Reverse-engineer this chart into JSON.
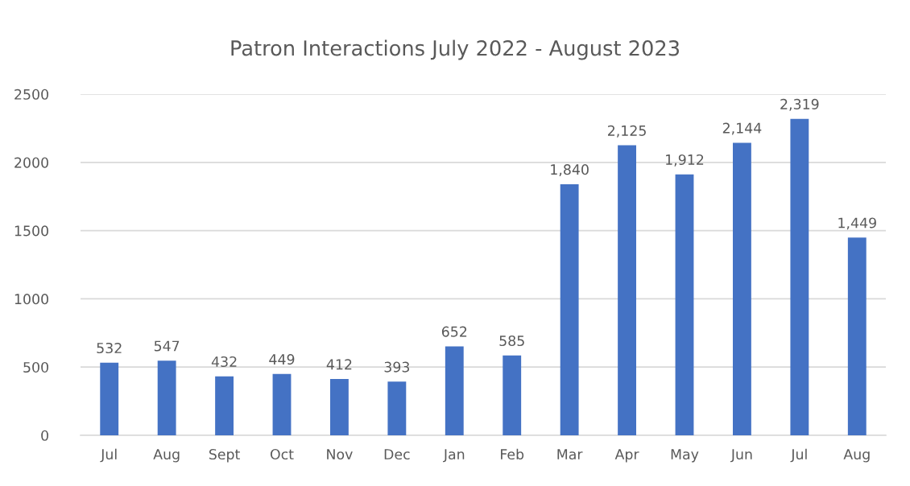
{
  "chart_data": {
    "type": "bar",
    "title": "Patron Interactions July 2022 - August 2023",
    "categories": [
      "Jul",
      "Aug",
      "Sept",
      "Oct",
      "Nov",
      "Dec",
      "Jan",
      "Feb",
      "Mar",
      "Apr",
      "May",
      "Jun",
      "Jul",
      "Aug"
    ],
    "values": [
      532,
      547,
      432,
      449,
      412,
      393,
      652,
      585,
      1840,
      2125,
      1912,
      2144,
      2319,
      1449
    ],
    "value_labels": [
      "532",
      "547",
      "432",
      "449",
      "412",
      "393",
      "652",
      "585",
      "1,840",
      "2,125",
      "1,912",
      "2,144",
      "2,319",
      "1,449"
    ],
    "color": "#4472c4",
    "ylim": [
      0,
      2500
    ],
    "yticks": [
      0,
      500,
      1000,
      1500,
      2000,
      2500
    ],
    "grid": "y",
    "legend": false
  }
}
